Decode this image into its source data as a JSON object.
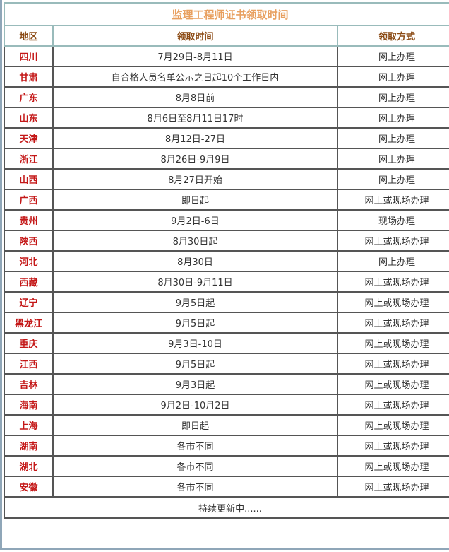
{
  "title": "监理工程师证书领取时间",
  "headers": [
    "地区",
    "领取时间",
    "领取方式"
  ],
  "rows": [
    [
      "四川",
      "7月29日-8月11日",
      "网上办理"
    ],
    [
      "甘肃",
      "自合格人员名单公示之日起10个工作日内",
      "网上办理"
    ],
    [
      "广东",
      "8月8日前",
      "网上办理"
    ],
    [
      "山东",
      "8月6日至8月11日17时",
      "网上办理"
    ],
    [
      "天津",
      "8月12日-27日",
      "网上办理"
    ],
    [
      "浙江",
      "8月26日-9月9日",
      "网上办理"
    ],
    [
      "山西",
      "8月27日开始",
      "网上办理"
    ],
    [
      "广西",
      "即日起",
      "网上或现场办理"
    ],
    [
      "贵州",
      "9月2日-6日",
      "现场办理"
    ],
    [
      "陕西",
      "8月30日起",
      "网上或现场办理"
    ],
    [
      "河北",
      "8月30日",
      "网上办理"
    ],
    [
      "西藏",
      "8月30日-9月11日",
      "网上或现场办理"
    ],
    [
      "辽宁",
      "9月5日起",
      "网上或现场办理"
    ],
    [
      "黑龙江",
      "9月5日起",
      "网上或现场办理"
    ],
    [
      "重庆",
      "9月3日-10日",
      "网上或现场办理"
    ],
    [
      "江西",
      "9月5日起",
      "网上或现场办理"
    ],
    [
      "吉林",
      "9月3日起",
      "网上或现场办理"
    ],
    [
      "海南",
      "9月2日-10月2日",
      "网上或现场办理"
    ],
    [
      "上海",
      "即日起",
      "网上或现场办理"
    ],
    [
      "湖南",
      "各市不同",
      "网上或现场办理"
    ],
    [
      "湖北",
      "各市不同",
      "网上或现场办理"
    ],
    [
      "安徽",
      "各市不同",
      "网上或现场办理"
    ]
  ],
  "footer": "持续更新中......"
}
